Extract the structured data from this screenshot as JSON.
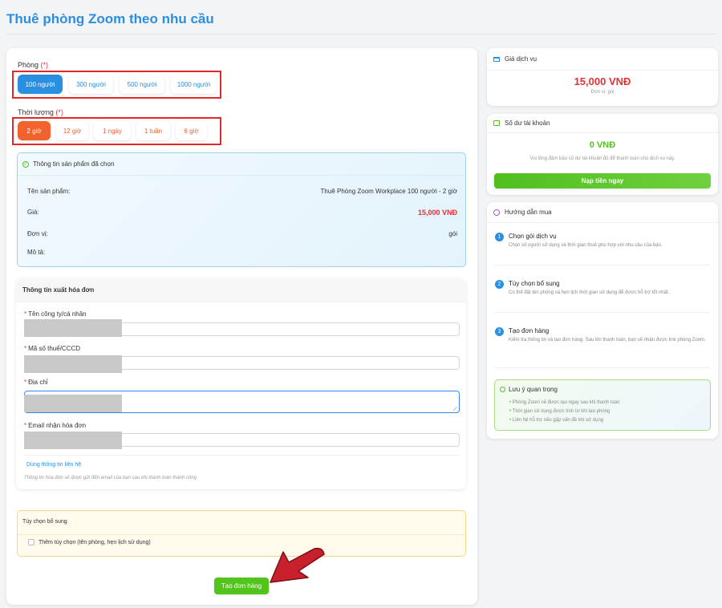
{
  "page": {
    "title": "Thuê phòng Zoom theo nhu cầu"
  },
  "room": {
    "label": "Phòng",
    "required": "(*)",
    "options": [
      "100 người",
      "300 người",
      "500 người",
      "1000 người"
    ],
    "selected": 0
  },
  "duration": {
    "label": "Thời lượng",
    "required": "(*)",
    "options": [
      "2 giờ",
      "12 giờ",
      "1 ngày",
      "1 tuần",
      "6 giờ"
    ],
    "selected": 0
  },
  "product": {
    "header": "Thông tin sản phẩm đã chọn",
    "rows": [
      {
        "label": "Tên sản phẩm:",
        "value": "Thuê Phòng Zoom Workplace 100 người - 2 giờ"
      },
      {
        "label": "Giá:",
        "value": "15,000 VNĐ"
      },
      {
        "label": "Đơn vị:",
        "value": "gói"
      },
      {
        "label": "Mô tả:",
        "value": ""
      }
    ]
  },
  "invoice": {
    "header": "Thông tin xuất hóa đơn",
    "fields": [
      "Tên công ty/cá nhân",
      "Mã số thuế/CCCD",
      "Địa chỉ",
      "Email nhận hóa đơn"
    ],
    "use_contact": "Dùng thông tin liên hệ",
    "note": "Thông tin hóa đơn sẽ được gửi đến email của bạn sau khi thanh toán thành công"
  },
  "extras": {
    "header": "Tùy chọn bổ sung",
    "checkbox_label": "Thêm tùy chọn (tên phòng, hẹn lịch sử dụng)",
    "checked": false
  },
  "submit_label": "Tạo đơn hàng",
  "price_card": {
    "title": "Giá dịch vụ",
    "price": "15,000 VNĐ",
    "unit": "Đơn vị: gói"
  },
  "balance_card": {
    "title": "Số dư tài khoản",
    "balance": "0 VNĐ",
    "note": "Vui lòng đảm bảo số dư tài khoản đủ để thanh toán cho dịch vụ này.",
    "topup_label": "Nạp tiền ngay"
  },
  "guide": {
    "title": "Hướng dẫn mua",
    "steps": [
      {
        "num": "1",
        "title": "Chọn gói dịch vụ",
        "desc": "Chọn số người sử dụng và thời gian thuê phù hợp với nhu cầu của bạn."
      },
      {
        "num": "2",
        "title": "Tùy chọn bổ sung",
        "desc": "Có thể đặt tên phòng và hẹn lịch thời gian sử dụng để được hỗ trợ tốt nhất."
      },
      {
        "num": "3",
        "title": "Tạo đơn hàng",
        "desc": "Kiểm tra thông tin và tạo đơn hàng. Sau khi thanh toán, bạn sẽ nhận được link phòng Zoom."
      }
    ],
    "notice": {
      "title": "Lưu ý quan trọng",
      "items": [
        "Phòng Zoom sẽ được tạo ngay sau khi thanh toán",
        "Thời gian sử dụng được tính từ khi tạo phòng",
        "Liên hệ hỗ trợ nếu gặp vấn đề khi sử dụng"
      ]
    }
  },
  "colors": {
    "primary": "#2a8fe0",
    "orange": "#f2622e",
    "green": "#52c41a",
    "red": "#e0323a"
  }
}
